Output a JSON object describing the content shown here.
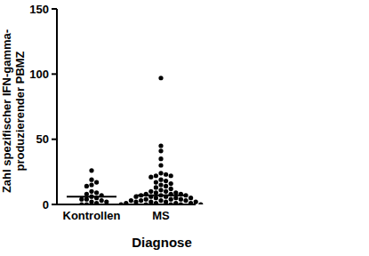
{
  "chart_data": {
    "type": "dot",
    "categories": [
      "Kontrollen",
      "MS"
    ],
    "values": [
      [
        26,
        19,
        17,
        15,
        14,
        10,
        9,
        8,
        7,
        6,
        5,
        4,
        4,
        3,
        2,
        2,
        1,
        0,
        0
      ],
      [
        97,
        45,
        41,
        35,
        30,
        24,
        23,
        22,
        22,
        21,
        19,
        18,
        17,
        16,
        15,
        14,
        13,
        12,
        11,
        10,
        10,
        9,
        9,
        8,
        8,
        8,
        7,
        7,
        7,
        6,
        6,
        6,
        5,
        5,
        5,
        4,
        4,
        4,
        3,
        3,
        3,
        3,
        2,
        2,
        2,
        2,
        1,
        1,
        1,
        1,
        0,
        0,
        0,
        0,
        0
      ]
    ],
    "medians": [
      6,
      7
    ],
    "color": "#000000",
    "marker": "circle",
    "x_label": "Diagnose",
    "y_label": [
      "Zahl spezifischer IFN-gamma-",
      "produzierender PBMZ"
    ],
    "ylim": [
      0,
      150
    ],
    "yticks": [
      0,
      50,
      100,
      150
    ],
    "grid": false
  }
}
